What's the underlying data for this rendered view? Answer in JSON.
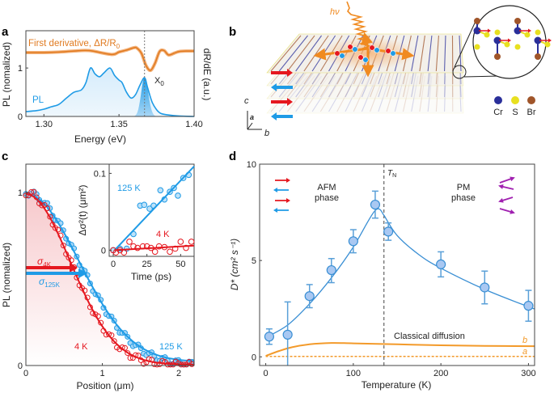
{
  "panels": {
    "a": {
      "label": "a"
    },
    "b": {
      "label": "b",
      "photon": "hν",
      "legend": [
        "Cr",
        "S",
        "Br"
      ],
      "axes": {
        "c": "c",
        "a": "a",
        "b": "b"
      }
    },
    "c": {
      "label": "c"
    },
    "d": {
      "label": "d"
    }
  },
  "colors": {
    "orange": "#e07a20",
    "blue": "#1f9be6",
    "red": "#e5171f",
    "purple": "#a020b0",
    "cr": "#2a2f9a",
    "s": "#e8e020",
    "br": "#a0552a"
  },
  "chart_data": [
    {
      "id": "a",
      "type": "line",
      "xlabel": "Energy (eV)",
      "ylabel": "PL (nomalized)",
      "ylabel_right": "dR/dE (a.u.)",
      "xlim": [
        1.288,
        1.4
      ],
      "ylim": [
        0,
        1.77
      ],
      "xticks": [
        "1.30",
        "1.35",
        "1.40"
      ],
      "yticks": [
        "0",
        "1"
      ],
      "annotation": "X",
      "annotation_sub": "0",
      "marker_energy": 1.367,
      "series": [
        {
          "name": "PL",
          "color": "#1f9be6",
          "x": [
            1.288,
            1.295,
            1.3,
            1.305,
            1.31,
            1.315,
            1.32,
            1.325,
            1.328,
            1.331,
            1.334,
            1.337,
            1.34,
            1.344,
            1.347,
            1.35,
            1.352,
            1.355,
            1.358,
            1.361,
            1.364,
            1.367,
            1.369,
            1.372,
            1.375,
            1.378,
            1.383,
            1.39,
            1.4
          ],
          "y": [
            0.1,
            0.12,
            0.15,
            0.2,
            0.25,
            0.38,
            0.5,
            0.55,
            0.7,
            1.0,
            0.88,
            0.82,
            0.9,
            1.0,
            0.85,
            0.75,
            0.7,
            0.5,
            0.38,
            0.45,
            0.65,
            0.8,
            0.6,
            0.3,
            0.14,
            0.06,
            0.03,
            0.01,
            0.0
          ]
        },
        {
          "name": "First derivative, ΔR/R",
          "name_sub": "0",
          "color": "#e07a20",
          "x": [
            1.288,
            1.3,
            1.31,
            1.32,
            1.33,
            1.345,
            1.35,
            1.355,
            1.36,
            1.362,
            1.365,
            1.368,
            1.371,
            1.374,
            1.377,
            1.38,
            1.383,
            1.387,
            1.39,
            1.395,
            1.4
          ],
          "y": [
            1.32,
            1.32,
            1.33,
            1.35,
            1.36,
            1.28,
            1.33,
            1.37,
            1.42,
            1.41,
            1.3,
            1.05,
            0.95,
            1.1,
            1.34,
            1.36,
            1.27,
            1.31,
            1.34,
            1.35,
            1.35
          ]
        }
      ]
    },
    {
      "id": "c",
      "type": "scatter",
      "xlabel": "Position (μm)",
      "ylabel": "PL (nomalized)",
      "xlim": [
        0,
        2.2
      ],
      "ylim": [
        0,
        1.0
      ],
      "xticks": [
        "0",
        "1",
        "2"
      ],
      "yticks": [
        "0",
        "1"
      ],
      "series": [
        {
          "name": "4 K",
          "color": "#e5171f",
          "sigma_um": 0.58,
          "sigma_label": "σ",
          "sigma_sub": "4K"
        },
        {
          "name": "125 K",
          "color": "#1f9be6",
          "sigma_um": 0.69,
          "sigma_label": "σ",
          "sigma_sub": "125K"
        }
      ],
      "inset": {
        "type": "scatter",
        "xlabel": "Time (ps)",
        "ylabel": "Δσ²(t) (μm²)",
        "xlim": [
          -3,
          60
        ],
        "ylim": [
          -0.008,
          0.112
        ],
        "xticks": [
          "0",
          "25",
          "50"
        ],
        "yticks": [
          "0",
          "0.1"
        ],
        "series": [
          {
            "name": "125 K",
            "color": "#1f9be6",
            "x": [
              0,
              5,
              10,
              15,
              20,
              23,
              27,
              30,
              35,
              38,
              42,
              45,
              48,
              52,
              56
            ],
            "y": [
              0.0,
              0.002,
              0.002,
              0.021,
              0.058,
              0.059,
              0.054,
              0.058,
              0.078,
              0.066,
              0.076,
              0.081,
              0.071,
              0.094,
              0.098
            ],
            "fit_slope": 0.00185
          },
          {
            "name": "4 K",
            "color": "#e5171f",
            "x": [
              0,
              2,
              5,
              8,
              12,
              15,
              18,
              22,
              25,
              28,
              31,
              34,
              38,
              42,
              46,
              50,
              54,
              58
            ],
            "y": [
              0.0,
              -0.003,
              0.0,
              -0.003,
              0.011,
              0.005,
              0.003,
              0.005,
              0.005,
              0.003,
              -0.002,
              0.005,
              0.004,
              -0.002,
              0.002,
              0.011,
              0.003,
              0.011
            ],
            "fit_slope": 0.0001
          }
        ]
      }
    },
    {
      "id": "d",
      "type": "scatter",
      "xlabel": "Temperature (K)",
      "ylabel": "D* (cm² s⁻¹)",
      "xlim": [
        -7,
        307
      ],
      "ylim": [
        -0.45,
        10
      ],
      "xticks": [
        "0",
        "100",
        "200",
        "300"
      ],
      "yticks": [
        "0",
        "5",
        "10"
      ],
      "T_N_label": "T",
      "T_N_sub": "N",
      "T_N": 135,
      "phase_labels": [
        [
          "AFM",
          "phase"
        ],
        [
          "PM",
          "phase"
        ]
      ],
      "classical_label": "Classical diffusion",
      "points": {
        "x": [
          4,
          25,
          50,
          75,
          100,
          125,
          140,
          200,
          250,
          300
        ],
        "y": [
          1.05,
          1.15,
          3.15,
          4.5,
          6.0,
          7.9,
          6.5,
          4.8,
          3.6,
          2.65
        ],
        "err_lo": [
          0.4,
          1.6,
          0.6,
          0.65,
          0.6,
          0.7,
          0.45,
          0.65,
          0.85,
          0.8
        ],
        "err_hi": [
          0.4,
          1.7,
          0.6,
          0.6,
          0.6,
          0.7,
          0.45,
          0.65,
          0.85,
          0.8
        ]
      },
      "fit": {
        "x": [
          0,
          25,
          50,
          75,
          100,
          125,
          135,
          150,
          175,
          200,
          250,
          300,
          307
        ],
        "y": [
          1.0,
          1.65,
          2.75,
          4.1,
          5.7,
          7.6,
          7.35,
          6.3,
          5.3,
          4.6,
          3.5,
          2.6,
          2.5
        ]
      },
      "classical": [
        {
          "name": "b",
          "color": "#f39a2a",
          "style": "solid",
          "x": [
            0,
            15,
            30,
            50,
            75,
            100,
            150,
            200,
            250,
            307
          ],
          "y": [
            0.05,
            0.3,
            0.5,
            0.65,
            0.72,
            0.7,
            0.65,
            0.6,
            0.57,
            0.55
          ]
        },
        {
          "name": "a",
          "color": "#f39a2a",
          "style": "dashed",
          "x": [
            0,
            307
          ],
          "y": [
            0.02,
            0.02
          ]
        }
      ]
    }
  ]
}
